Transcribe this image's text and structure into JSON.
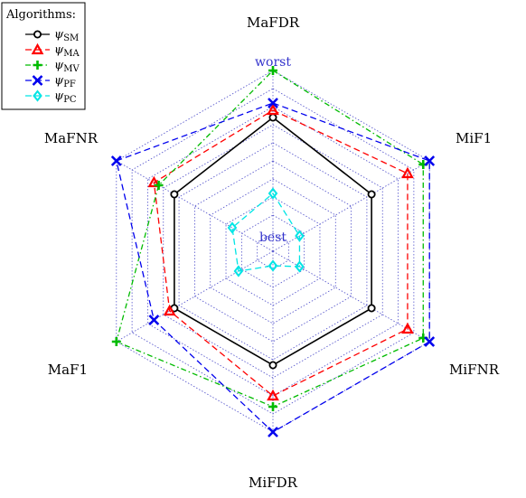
{
  "chart_data": {
    "type": "radar",
    "axes": [
      "MaFDR",
      "MiF1",
      "MiFNR",
      "MiFDR",
      "MaF1",
      "MaFNR"
    ],
    "scale_labels": {
      "outer": "worst",
      "inner": "best"
    },
    "rmax": 10,
    "rings": 10,
    "legend": {
      "title": "Algorithms:",
      "position": "top-left",
      "entries": [
        {
          "base": "ψ",
          "sub": "SM"
        },
        {
          "base": "ψ",
          "sub": "MA"
        },
        {
          "base": "ψ",
          "sub": "MV"
        },
        {
          "base": "ψ",
          "sub": "PF"
        },
        {
          "base": "ψ",
          "sub": "PC"
        }
      ]
    },
    "series": [
      {
        "values": [
          7.4,
          6.3,
          6.3,
          6.3,
          6.3,
          6.3
        ],
        "color": "#000000",
        "marker": "circle",
        "dash": "solid"
      },
      {
        "values": [
          7.8,
          8.6,
          8.6,
          8.0,
          6.6,
          7.6
        ],
        "color": "#ff0000",
        "marker": "triangle",
        "dash": "dashed"
      },
      {
        "values": [
          10.0,
          9.6,
          9.6,
          8.6,
          10.0,
          7.3
        ],
        "color": "#00bb00",
        "marker": "plus",
        "dash": "dashdot"
      },
      {
        "values": [
          8.2,
          10.0,
          10.0,
          10.0,
          7.6,
          10.0
        ],
        "color": "#0000ee",
        "marker": "x",
        "dash": "dashed"
      },
      {
        "values": [
          3.2,
          1.7,
          1.7,
          0.8,
          2.2,
          2.6
        ],
        "color": "#00e5e5",
        "marker": "diamond",
        "dash": "dashed"
      }
    ]
  }
}
